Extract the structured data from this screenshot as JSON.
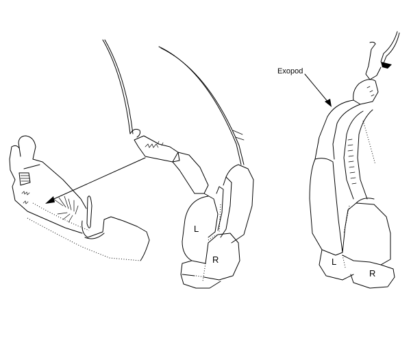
{
  "labels": {
    "exopod": "Exopod",
    "left_middle": "L",
    "right_middle": "R",
    "left_right": "L",
    "right_right": "R"
  }
}
